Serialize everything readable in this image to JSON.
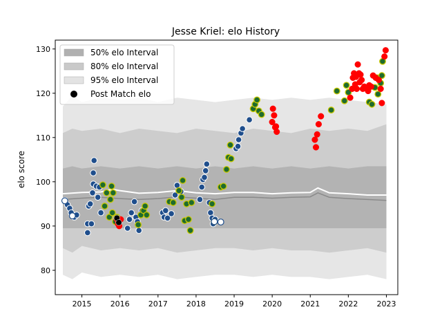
{
  "chart_data": {
    "type": "scatter",
    "title": "Jesse Kriel: elo History",
    "xlabel": "",
    "ylabel": "elo score",
    "xlim": [
      2014.3,
      2023.3
    ],
    "ylim": [
      74.5,
      132
    ],
    "x_ticks": [
      2015,
      2016,
      2017,
      2018,
      2019,
      2020,
      2021,
      2022,
      2023
    ],
    "y_ticks": [
      80,
      90,
      100,
      110,
      120,
      130
    ],
    "grid": false,
    "legend": {
      "placement": "top-left",
      "entries": [
        {
          "label": "50% elo Interval",
          "color": "#b0b0b0"
        },
        {
          "label": "80% elo Interval",
          "color": "#c9c9c9"
        },
        {
          "label": "95% elo Interval",
          "color": "#e3e3e3"
        },
        {
          "label": "Post Match elo",
          "color": "#000000"
        }
      ]
    },
    "bands": {
      "x": [
        2014.5,
        2014.75,
        2015.0,
        2015.5,
        2016.0,
        2016.5,
        2017.0,
        2017.5,
        2018.0,
        2018.5,
        2019.0,
        2019.5,
        2020.0,
        2020.5,
        2021.0,
        2021.5,
        2022.0,
        2022.5,
        2023.0
      ],
      "b95": {
        "low": [
          79,
          78,
          79.5,
          78.5,
          79,
          78.5,
          79,
          78,
          78.5,
          79,
          79,
          78.5,
          79,
          78.5,
          78.5,
          78,
          78.5,
          79,
          78
        ],
        "high": [
          117,
          119.5,
          118,
          119,
          118.5,
          119,
          118,
          119,
          118.5,
          118,
          118.5,
          119,
          118.5,
          119,
          118.5,
          119,
          118.5,
          118,
          117.5
        ]
      },
      "b80": {
        "low": [
          85,
          84,
          85.5,
          84.5,
          85,
          84.5,
          85,
          84,
          84.5,
          85,
          85,
          84.5,
          85,
          84.5,
          84.5,
          84,
          84.5,
          85,
          84
        ],
        "high": [
          111,
          112,
          111.5,
          112,
          111,
          112,
          111.5,
          111,
          112,
          111.5,
          111,
          112,
          111.5,
          111,
          112,
          111.5,
          112,
          111.5,
          113
        ]
      },
      "b50": {
        "low": [
          89.5,
          89.5,
          89.5,
          89.5,
          89.5,
          89.5,
          89.5,
          89.5,
          89.5,
          89.5,
          89.5,
          89.5,
          89.5,
          89.5,
          89.5,
          89.5,
          89.5,
          89.5,
          89.5
        ],
        "high": [
          103,
          103.5,
          103,
          103.5,
          103,
          103.5,
          103,
          103.5,
          103,
          103.5,
          103,
          103.5,
          103,
          103.5,
          103,
          103.5,
          103,
          103.5,
          103.5
        ]
      }
    },
    "median_line": {
      "x": [
        2014.5,
        2015.0,
        2015.5,
        2016.0,
        2016.5,
        2017.0,
        2017.5,
        2018.0,
        2018.5,
        2019.0,
        2019.5,
        2020.0,
        2020.5,
        2021.0,
        2021.2,
        2021.5,
        2022.0,
        2022.5,
        2023.0
      ],
      "y": [
        96,
        96.3,
        96.5,
        96.2,
        96,
        96.2,
        96.6,
        96.3,
        96,
        96.5,
        96.5,
        96.3,
        96.5,
        96.6,
        97.5,
        96.5,
        96.2,
        96,
        95.8
      ]
    },
    "mean_line": {
      "x": [
        2014.5,
        2015.0,
        2015.5,
        2015.8,
        2016.0,
        2016.5,
        2017.0,
        2017.5,
        2018.0,
        2018.5,
        2019.0,
        2019.5,
        2020.0,
        2020.5,
        2021.0,
        2021.2,
        2021.5,
        2022.0,
        2022.5,
        2023.0
      ],
      "y": [
        97.3,
        97.6,
        97.7,
        98.3,
        98,
        97.4,
        97.6,
        98,
        97.5,
        97.3,
        97.6,
        97.6,
        97.3,
        97.5,
        97.6,
        98.6,
        97.5,
        97.3,
        97,
        97
      ]
    },
    "series": [
      {
        "style": "blue",
        "points": [
          [
            2014.55,
            95.8
          ],
          [
            2014.62,
            94.8
          ],
          [
            2014.68,
            94
          ],
          [
            2014.72,
            93
          ],
          [
            2014.8,
            92
          ],
          [
            2014.86,
            92.5
          ],
          [
            2015.15,
            88.5
          ],
          [
            2015.15,
            90.5
          ],
          [
            2015.18,
            94.5
          ],
          [
            2015.22,
            95
          ],
          [
            2015.25,
            90.5
          ],
          [
            2015.28,
            97.5
          ],
          [
            2015.3,
            99.5
          ],
          [
            2015.3,
            102
          ],
          [
            2015.32,
            104.8
          ],
          [
            2015.38,
            99
          ],
          [
            2015.42,
            96.5
          ],
          [
            2015.46,
            98.8
          ],
          [
            2015.5,
            93
          ],
          [
            2016.2,
            89.5
          ],
          [
            2016.25,
            91.5
          ],
          [
            2016.3,
            93
          ],
          [
            2016.38,
            95.5
          ],
          [
            2016.42,
            92
          ],
          [
            2016.46,
            91
          ],
          [
            2016.5,
            89
          ],
          [
            2016.58,
            93.5
          ],
          [
            2017.12,
            93
          ],
          [
            2017.16,
            92
          ],
          [
            2017.2,
            93.5
          ],
          [
            2017.25,
            91.8
          ],
          [
            2017.35,
            92.8
          ],
          [
            2017.45,
            97
          ],
          [
            2017.5,
            99.2
          ],
          [
            2017.6,
            97.8
          ],
          [
            2018.1,
            96
          ],
          [
            2018.15,
            98.8
          ],
          [
            2018.18,
            100.5
          ],
          [
            2018.22,
            101
          ],
          [
            2018.25,
            102.5
          ],
          [
            2018.28,
            104
          ],
          [
            2018.35,
            95.3
          ],
          [
            2018.38,
            93
          ],
          [
            2018.42,
            91.8
          ],
          [
            2018.45,
            90.5
          ],
          [
            2018.5,
            91.5
          ],
          [
            2019.05,
            107.5
          ],
          [
            2019.1,
            108
          ],
          [
            2019.12,
            109.5
          ],
          [
            2019.18,
            111
          ],
          [
            2019.22,
            112
          ],
          [
            2019.4,
            114
          ]
        ]
      },
      {
        "style": "green",
        "points": [
          [
            2015.55,
            99.3
          ],
          [
            2015.6,
            94.5
          ],
          [
            2015.65,
            97.5
          ],
          [
            2015.72,
            92
          ],
          [
            2015.75,
            96
          ],
          [
            2015.78,
            99
          ],
          [
            2015.8,
            93
          ],
          [
            2015.82,
            97.5
          ],
          [
            2015.88,
            91
          ],
          [
            2015.92,
            92
          ],
          [
            2016.48,
            90.3
          ],
          [
            2016.55,
            92.5
          ],
          [
            2016.62,
            93.5
          ],
          [
            2016.66,
            94.5
          ],
          [
            2016.7,
            92.5
          ],
          [
            2017.3,
            95.5
          ],
          [
            2017.4,
            95.3
          ],
          [
            2017.55,
            98
          ],
          [
            2017.62,
            96.5
          ],
          [
            2017.65,
            100.3
          ],
          [
            2017.7,
            91.2
          ],
          [
            2017.75,
            95
          ],
          [
            2017.8,
            91.5
          ],
          [
            2017.85,
            89
          ],
          [
            2017.88,
            95.3
          ],
          [
            2018.42,
            95
          ],
          [
            2018.48,
            91
          ],
          [
            2018.65,
            98.8
          ],
          [
            2018.72,
            99
          ],
          [
            2018.8,
            102.8
          ],
          [
            2018.85,
            105.5
          ],
          [
            2018.9,
            108.3
          ],
          [
            2018.92,
            105.2
          ],
          [
            2019.5,
            116.5
          ],
          [
            2019.55,
            117.5
          ],
          [
            2019.6,
            118.5
          ],
          [
            2019.65,
            116
          ],
          [
            2019.72,
            115.2
          ],
          [
            2021.55,
            116.2
          ],
          [
            2021.7,
            120.5
          ],
          [
            2021.9,
            118.3
          ],
          [
            2021.95,
            121.8
          ],
          [
            2022.0,
            120.2
          ],
          [
            2022.55,
            118
          ],
          [
            2022.62,
            117.5
          ],
          [
            2022.7,
            121.3
          ],
          [
            2022.75,
            123.5
          ],
          [
            2022.78,
            119.8
          ],
          [
            2022.85,
            122.3
          ],
          [
            2022.88,
            124
          ],
          [
            2022.9,
            127.2
          ]
        ]
      },
      {
        "style": "red",
        "points": [
          [
            2015.92,
            91.5
          ],
          [
            2015.95,
            90.5
          ],
          [
            2015.98,
            90
          ],
          [
            2016.02,
            91.5
          ],
          [
            2020.0,
            113.5
          ],
          [
            2020.02,
            116.5
          ],
          [
            2020.05,
            115
          ],
          [
            2020.08,
            112.3
          ],
          [
            2020.1,
            112.5
          ],
          [
            2020.12,
            111.3
          ],
          [
            2021.12,
            109.5
          ],
          [
            2021.15,
            107.8
          ],
          [
            2021.18,
            110.7
          ],
          [
            2021.22,
            113
          ],
          [
            2021.28,
            114.8
          ],
          [
            2022.05,
            119
          ],
          [
            2022.1,
            121
          ],
          [
            2022.12,
            123.5
          ],
          [
            2022.15,
            124.5
          ],
          [
            2022.18,
            122
          ],
          [
            2022.2,
            123.7
          ],
          [
            2022.22,
            121
          ],
          [
            2022.25,
            126.5
          ],
          [
            2022.28,
            124.5
          ],
          [
            2022.3,
            122.5
          ],
          [
            2022.32,
            124.2
          ],
          [
            2022.35,
            123
          ],
          [
            2022.38,
            121
          ],
          [
            2022.42,
            121.5
          ],
          [
            2022.48,
            121
          ],
          [
            2022.52,
            120.5
          ],
          [
            2022.55,
            121.8
          ],
          [
            2022.6,
            121.5
          ],
          [
            2022.65,
            124
          ],
          [
            2022.72,
            123.5
          ],
          [
            2022.8,
            123
          ],
          [
            2022.85,
            121
          ],
          [
            2022.88,
            117.8
          ],
          [
            2022.95,
            128.3
          ],
          [
            2022.98,
            129.7
          ]
        ]
      },
      {
        "style": "black",
        "points": [
          [
            2015.92,
            91.8
          ],
          [
            2015.97,
            90.8
          ]
        ]
      },
      {
        "style": "white",
        "points": [
          [
            2014.55,
            95.7
          ],
          [
            2014.75,
            92.3
          ],
          [
            2018.65,
            90.9
          ],
          [
            2018.48,
            91
          ]
        ]
      }
    ],
    "colors": {
      "band95": "#e6e6e6",
      "band80": "#cdcdcd",
      "band50": "#b3b3b3",
      "median_line": "#8a8a8a",
      "mean_line": "#ffffff",
      "blue_fill": "#1f4e8c",
      "green_fill": "#1e6b2e",
      "green_edge": "#c8c800",
      "red_fill": "#ff0000",
      "black_fill": "#000000"
    }
  }
}
